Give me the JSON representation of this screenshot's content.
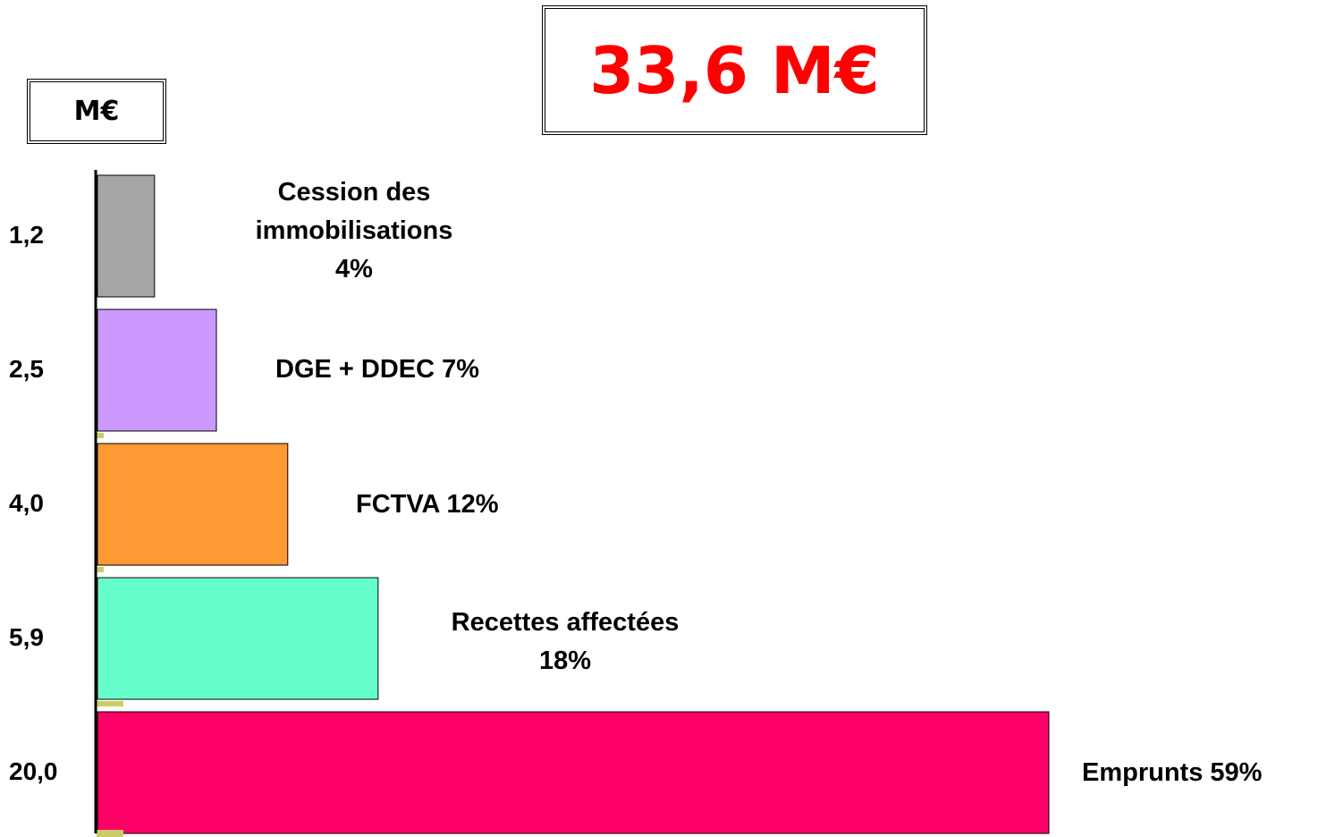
{
  "chart_data": {
    "type": "bar",
    "orientation": "horizontal",
    "title": "33,6 M€",
    "unit_label": "M€",
    "categories": [
      "Cession des\nimmobilisations\n4%",
      "DGE + DDEC 7%",
      "FCTVA 12%",
      "Recettes affectées\n18%",
      "Emprunts 59%"
    ],
    "values": [
      1.2,
      2.5,
      4.0,
      5.9,
      20.0
    ],
    "value_labels": [
      "1,2",
      "2,5",
      "4,0",
      "5,9",
      "20,0"
    ],
    "colors": [
      "#a6a6a6",
      "#cc99ff",
      "#ff9933",
      "#66ffcc",
      "#ff0066"
    ],
    "xlim": [
      0,
      20
    ]
  }
}
